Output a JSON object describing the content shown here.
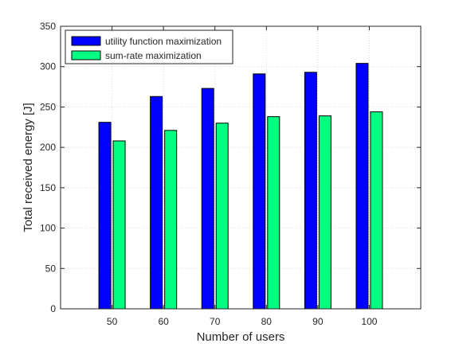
{
  "chart_data": {
    "type": "bar",
    "categories": [
      "50",
      "60",
      "70",
      "80",
      "90",
      "100"
    ],
    "series": [
      {
        "name": "utility function maximization",
        "values": [
          231,
          263,
          273,
          291,
          293,
          304
        ],
        "color": "#0000ff"
      },
      {
        "name": "sum-rate maximization",
        "values": [
          208,
          221,
          230,
          238,
          239,
          244
        ],
        "color": "#00ff80"
      }
    ],
    "xlabel": "Number of users",
    "ylabel": "Total received energy [J]",
    "ylim": [
      0,
      350
    ],
    "yticks": [
      0,
      50,
      100,
      150,
      200,
      250,
      300,
      350
    ],
    "grid": true,
    "legend_position": "top-left"
  }
}
